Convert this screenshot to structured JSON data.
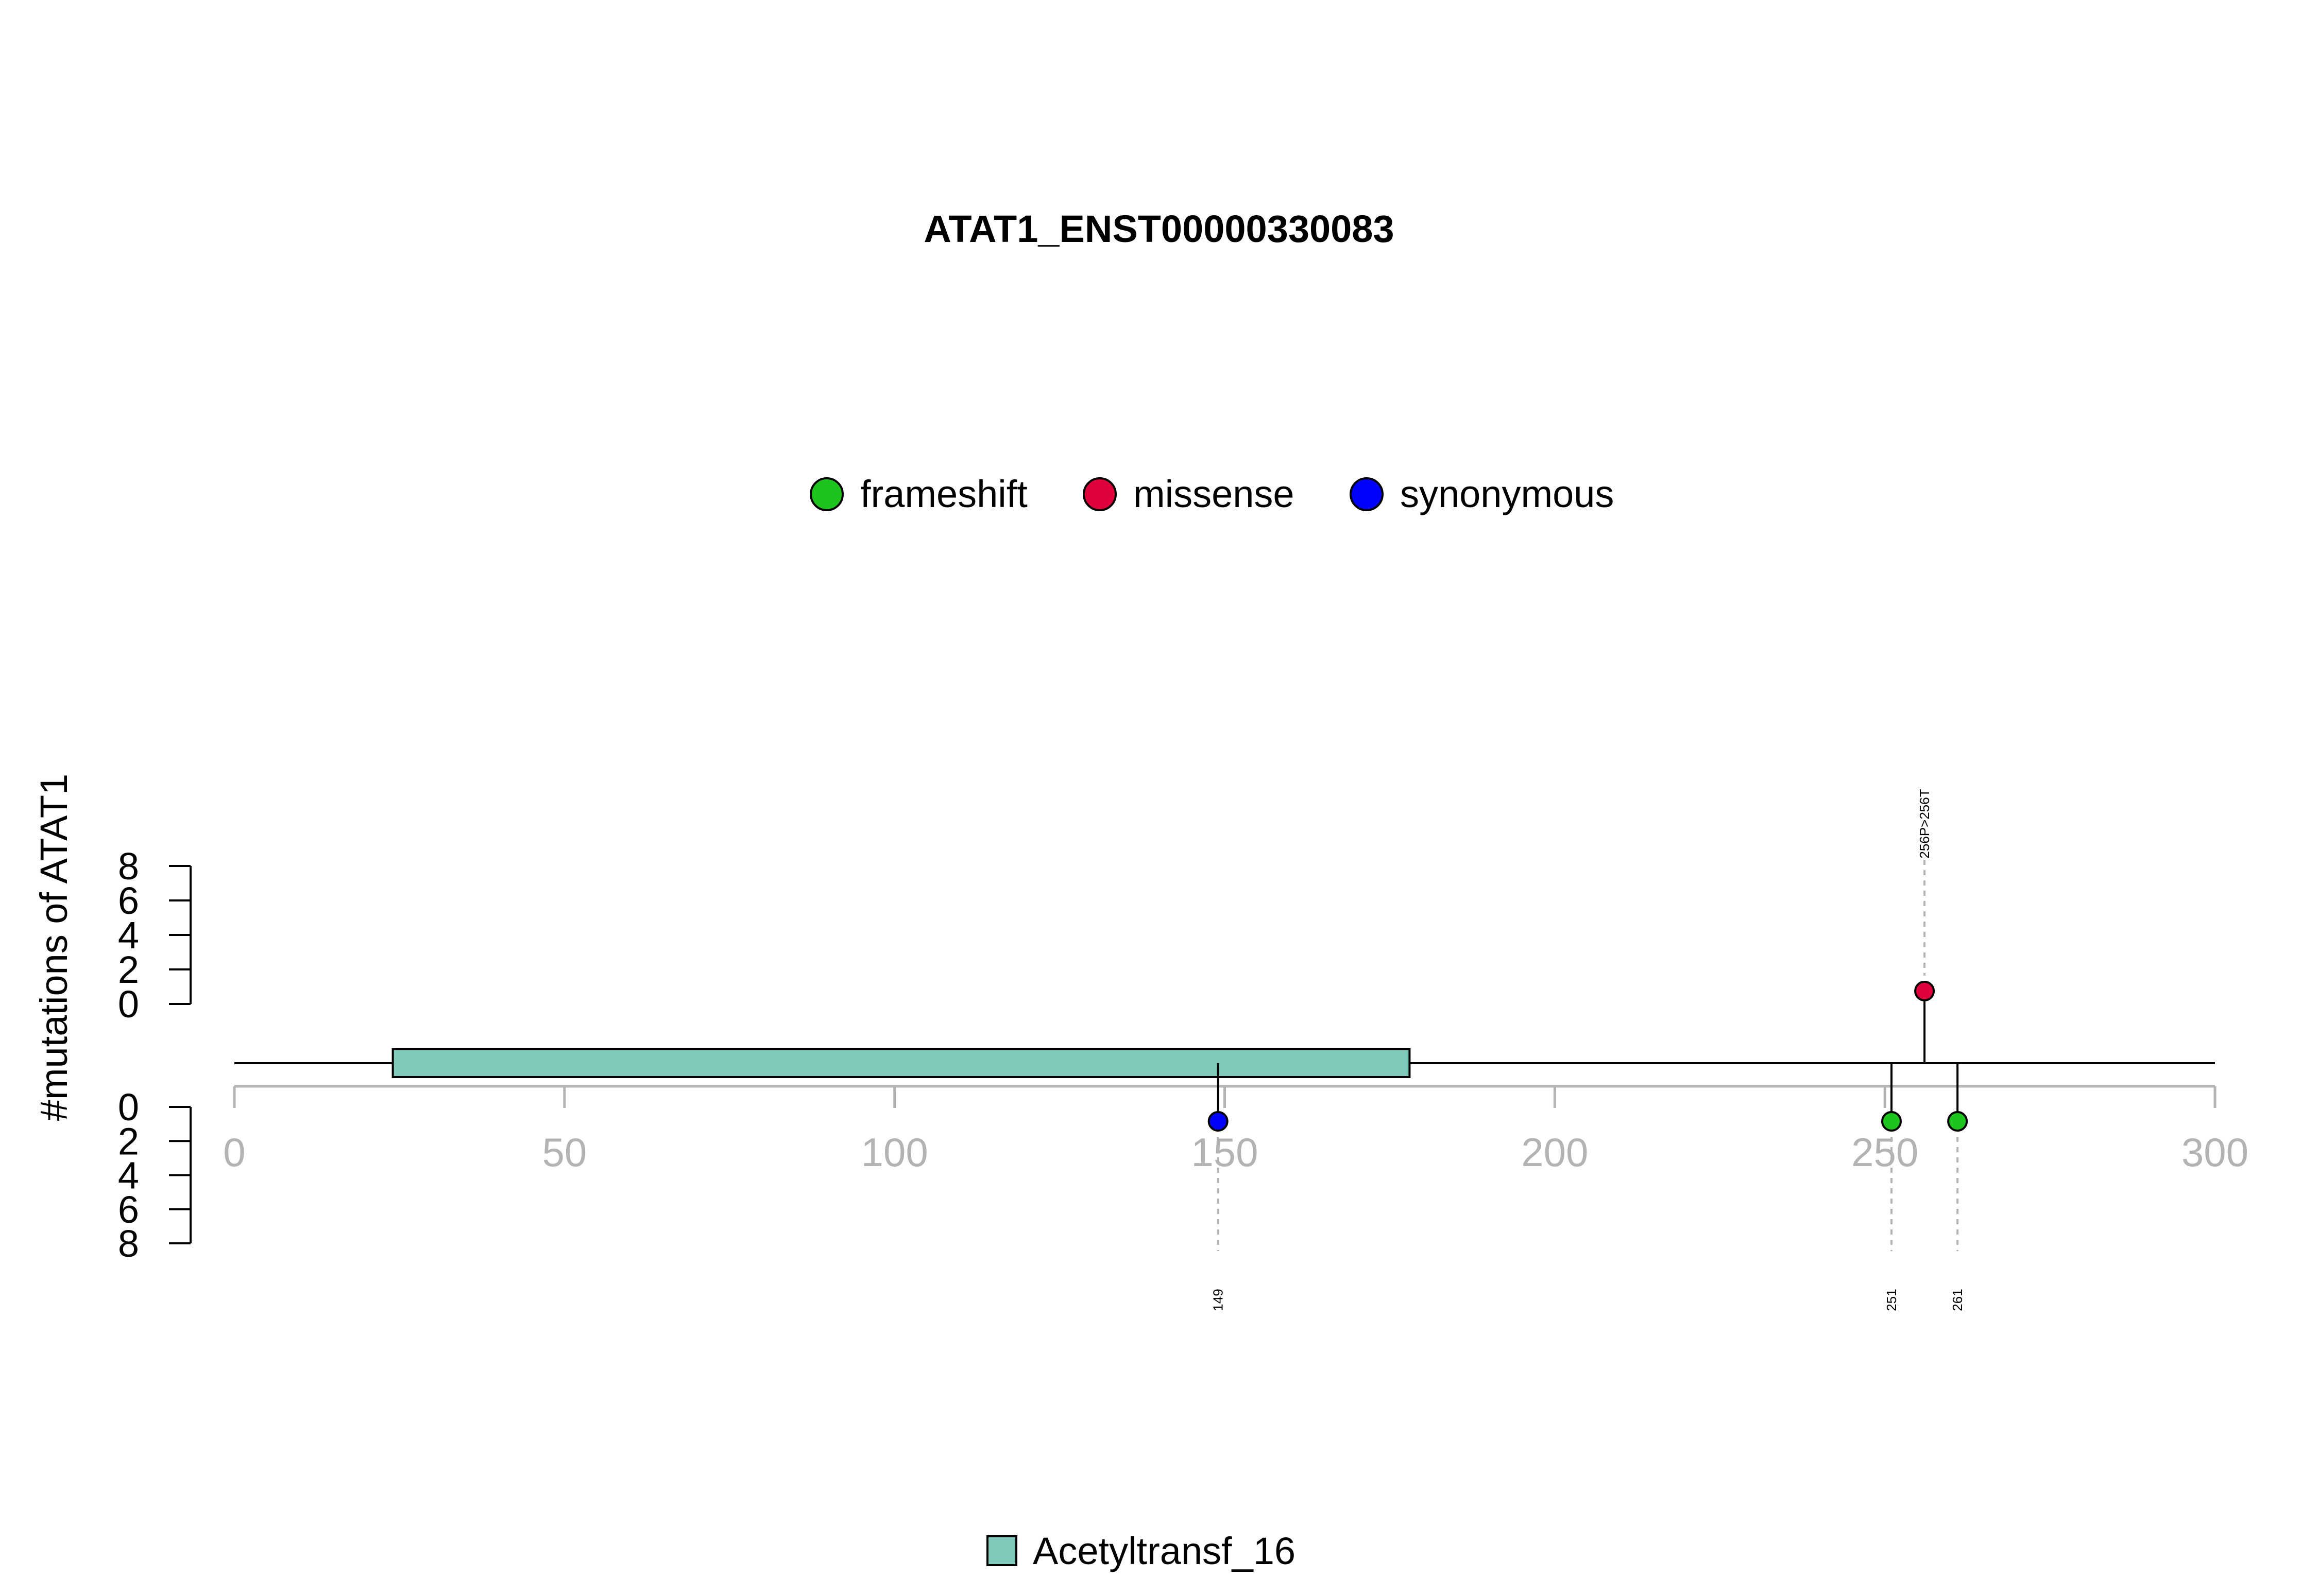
{
  "chart_data": {
    "type": "lollipop",
    "title": "ATAT1_ENST00000330083",
    "ylabel": "#mutations of ATAT1",
    "x_axis": {
      "min": 0,
      "max": 300,
      "ticks": [
        0,
        50,
        100,
        150,
        200,
        250,
        300
      ],
      "color": "#b3b3b3"
    },
    "y_axis": {
      "min": 0,
      "max": 8,
      "ticks": [
        0,
        2,
        4,
        6,
        8
      ]
    },
    "protein_length": 300,
    "legend_mutation_types": [
      {
        "label": "frameshift",
        "color": "#1ec41e"
      },
      {
        "label": "missense",
        "color": "#e0003c"
      },
      {
        "label": "synonymous",
        "color": "#0000ff"
      }
    ],
    "domains": [
      {
        "name": "Acetyltransf_16",
        "start": 24,
        "end": 178,
        "color": "#7fcbbb"
      }
    ],
    "mutations": [
      {
        "position": 256,
        "label": "256P>256T",
        "type": "missense",
        "side": "top",
        "count": 1
      },
      {
        "position": 149,
        "label": "149",
        "type": "synonymous",
        "side": "bottom",
        "count": 1
      },
      {
        "position": 251,
        "label": "251",
        "type": "frameshift",
        "side": "bottom",
        "count": 1
      },
      {
        "position": 261,
        "label": "261",
        "type": "frameshift",
        "side": "bottom",
        "count": 1
      }
    ]
  }
}
